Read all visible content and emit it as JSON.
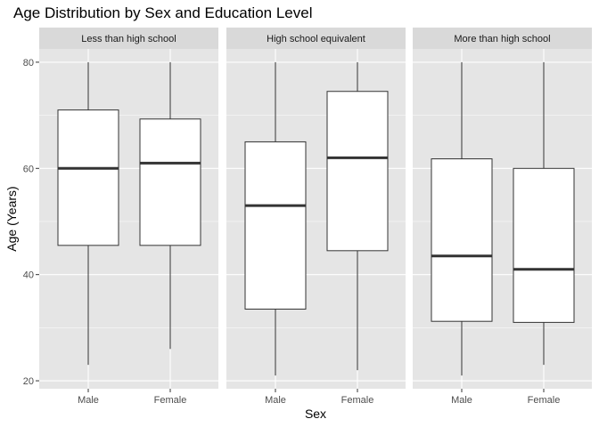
{
  "chart_data": {
    "type": "boxplot",
    "title": "Age Distribution by Sex and Education Level",
    "xlabel": "Sex",
    "ylabel": "Age (Years)",
    "ylim": [
      18.5,
      82.5
    ],
    "yticks": [
      20,
      40,
      60,
      80
    ],
    "categories": [
      "Male",
      "Female"
    ],
    "grid": true,
    "colors": {
      "panel_bg": "#e5e5e5",
      "grid_major": "#ffffff",
      "strip_bg": "#d9d9d9",
      "box_fill": "#ffffff",
      "box_line": "#333333"
    },
    "facets": [
      {
        "label": "Less than high school",
        "boxes": [
          {
            "category": "Male",
            "min": 23,
            "q1": 45.5,
            "median": 60,
            "q3": 71,
            "max": 80
          },
          {
            "category": "Female",
            "min": 26,
            "q1": 45.5,
            "median": 61,
            "q3": 69.3,
            "max": 80
          }
        ]
      },
      {
        "label": "High school equivalent",
        "boxes": [
          {
            "category": "Male",
            "min": 21,
            "q1": 33.5,
            "median": 53,
            "q3": 65,
            "max": 80
          },
          {
            "category": "Female",
            "min": 22,
            "q1": 44.5,
            "median": 62,
            "q3": 74.5,
            "max": 80
          }
        ]
      },
      {
        "label": "More than high school",
        "boxes": [
          {
            "category": "Male",
            "min": 21,
            "q1": 31.2,
            "median": 43.5,
            "q3": 61.8,
            "max": 80
          },
          {
            "category": "Female",
            "min": 23,
            "q1": 31,
            "median": 41,
            "q3": 60,
            "max": 80
          }
        ]
      }
    ]
  }
}
